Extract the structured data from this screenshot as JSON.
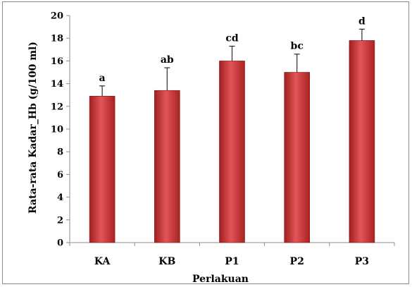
{
  "chart_data": {
    "type": "bar",
    "categories": [
      "KA",
      "KB",
      "P1",
      "P2",
      "P3"
    ],
    "values": [
      12.9,
      13.4,
      16.0,
      15.0,
      17.8
    ],
    "error_upper": [
      13.8,
      15.4,
      17.3,
      16.6,
      18.8
    ],
    "annotations": [
      "a",
      "ab",
      "cd",
      "bc",
      "d"
    ],
    "xlabel": "Perlakuan",
    "ylabel": "Rata-rata Kadar_Hb (g/100 ml)",
    "ylim": [
      0,
      20
    ],
    "yticks": [
      0,
      2,
      4,
      6,
      8,
      10,
      12,
      14,
      16,
      18,
      20
    ],
    "grid": false,
    "legend": "none",
    "bar_color": "#cc3333"
  }
}
